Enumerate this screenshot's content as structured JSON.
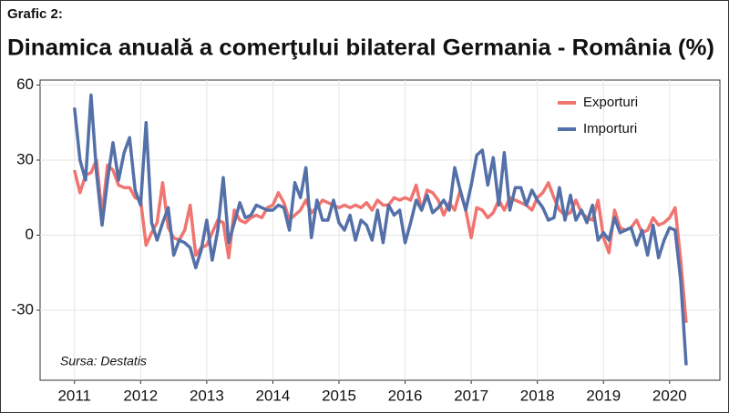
{
  "chart_data": {
    "type": "line",
    "label": "Grafic 2:",
    "title": "Dinamica anuală a comerţului bilateral Germania - România (%)",
    "annotation": "Sursa: Destatis",
    "x": [
      2011,
      2011.083,
      2011.167,
      2011.25,
      2011.333,
      2011.417,
      2011.5,
      2011.583,
      2011.667,
      2011.75,
      2011.833,
      2011.917,
      2012,
      2012.083,
      2012.167,
      2012.25,
      2012.333,
      2012.417,
      2012.5,
      2012.583,
      2012.667,
      2012.75,
      2012.833,
      2012.917,
      2013,
      2013.083,
      2013.167,
      2013.25,
      2013.333,
      2013.417,
      2013.5,
      2013.583,
      2013.667,
      2013.75,
      2013.833,
      2013.917,
      2014,
      2014.083,
      2014.167,
      2014.25,
      2014.333,
      2014.417,
      2014.5,
      2014.583,
      2014.667,
      2014.75,
      2014.833,
      2014.917,
      2015,
      2015.083,
      2015.167,
      2015.25,
      2015.333,
      2015.417,
      2015.5,
      2015.583,
      2015.667,
      2015.75,
      2015.833,
      2015.917,
      2016,
      2016.083,
      2016.167,
      2016.25,
      2016.333,
      2016.417,
      2016.5,
      2016.583,
      2016.667,
      2016.75,
      2016.833,
      2016.917,
      2017,
      2017.083,
      2017.167,
      2017.25,
      2017.333,
      2017.417,
      2017.5,
      2017.583,
      2017.667,
      2017.75,
      2017.833,
      2017.917,
      2018,
      2018.083,
      2018.167,
      2018.25,
      2018.333,
      2018.417,
      2018.5,
      2018.583,
      2018.667,
      2018.75,
      2018.833,
      2018.917,
      2019,
      2019.083,
      2019.167,
      2019.25,
      2019.333,
      2019.417,
      2019.5,
      2019.583,
      2019.667,
      2019.75,
      2019.833,
      2019.917,
      2020,
      2020.083,
      2020.167,
      2020.25
    ],
    "series": [
      {
        "name": "Exporturi",
        "color": "#f07470",
        "values": [
          26,
          17,
          24,
          25,
          30,
          8,
          28,
          26,
          20,
          19,
          19,
          15,
          14,
          -4,
          1,
          5,
          21,
          3,
          -1,
          -2,
          2,
          12,
          -8,
          -5,
          -4,
          1,
          6,
          5,
          -9,
          10,
          6,
          5,
          7,
          8,
          7,
          11,
          12,
          17,
          13,
          6,
          8,
          10,
          14,
          9,
          11,
          14,
          13,
          12,
          11,
          12,
          11,
          12,
          11,
          13,
          10,
          14,
          12,
          12,
          15,
          14,
          15,
          14,
          20,
          10,
          18,
          17,
          14,
          8,
          13,
          10,
          18,
          10,
          -1,
          11,
          10,
          7,
          9,
          14,
          10,
          15,
          14,
          13,
          12,
          10,
          15,
          17,
          21,
          15,
          10,
          8,
          9,
          14,
          9,
          7,
          6,
          14,
          -1,
          -7,
          10,
          3,
          2,
          3,
          6,
          1,
          2,
          7,
          4,
          5,
          7,
          11,
          -10,
          -35
        ]
      },
      {
        "name": "Importuri",
        "color": "#5470a8",
        "values": [
          51,
          30,
          22,
          56,
          25,
          4,
          22,
          37,
          22,
          33,
          39,
          18,
          12,
          45,
          5,
          -2,
          5,
          11,
          -8,
          -2,
          -3,
          -5,
          -13,
          -6,
          6,
          -10,
          2,
          23,
          -3,
          5,
          13,
          7,
          8,
          12,
          11,
          10,
          10,
          12,
          11,
          2,
          21,
          15,
          27,
          -1,
          14,
          6,
          6,
          14,
          5,
          2,
          8,
          -2,
          6,
          4,
          -2,
          10,
          -3,
          12,
          8,
          10,
          -3,
          5,
          14,
          10,
          16,
          9,
          11,
          14,
          10,
          27,
          18,
          10,
          20,
          32,
          34,
          20,
          31,
          12,
          33,
          10,
          19,
          19,
          12,
          18,
          14,
          11,
          6,
          7,
          19,
          6,
          16,
          6,
          10,
          5,
          12,
          -2,
          1,
          -2,
          7,
          1,
          2,
          3,
          -4,
          2,
          -8,
          4,
          -9,
          -2,
          3,
          2,
          -18,
          -52
        ]
      }
    ],
    "xlim": [
      2010.48,
      2020.76
    ],
    "xticks": [
      2011,
      2012,
      2013,
      2014,
      2015,
      2016,
      2017,
      2018,
      2019,
      2020
    ],
    "ylim": [
      -58,
      62
    ],
    "yticks": [
      -30,
      0,
      30,
      60
    ],
    "grid": true,
    "legend": "top-right"
  }
}
